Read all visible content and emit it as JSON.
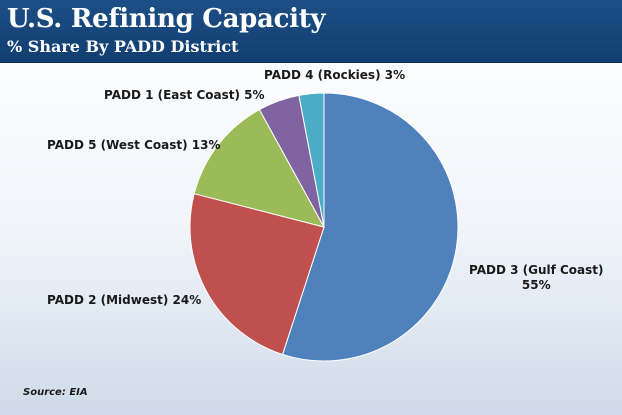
{
  "header": {
    "title": "U.S. Refining Capacity",
    "subtitle": "% Share By PADD District"
  },
  "source": "Source: EIA",
  "chart_data": {
    "type": "pie",
    "title": "U.S. Refining Capacity",
    "subtitle": "% Share By PADD District",
    "slices": [
      {
        "name": "PADD 3 (Gulf Coast)",
        "value": 55,
        "label": "55%",
        "color": "#4f81bd"
      },
      {
        "name": "PADD 2 (Midwest)",
        "value": 24,
        "label": "24%",
        "color": "#c0504d"
      },
      {
        "name": "PADD 5 (West Coast)",
        "value": 13,
        "label": "13%",
        "color": "#9bbb59"
      },
      {
        "name": "PADD 1 (East Coast)",
        "value": 5,
        "label": "5%",
        "color": "#8064a2"
      },
      {
        "name": "PADD 4 (Rockies)",
        "value": 3,
        "label": "3%",
        "color": "#4bacc6"
      }
    ],
    "legend": "none",
    "start_angle": "12 o'clock",
    "direction": "clockwise"
  }
}
